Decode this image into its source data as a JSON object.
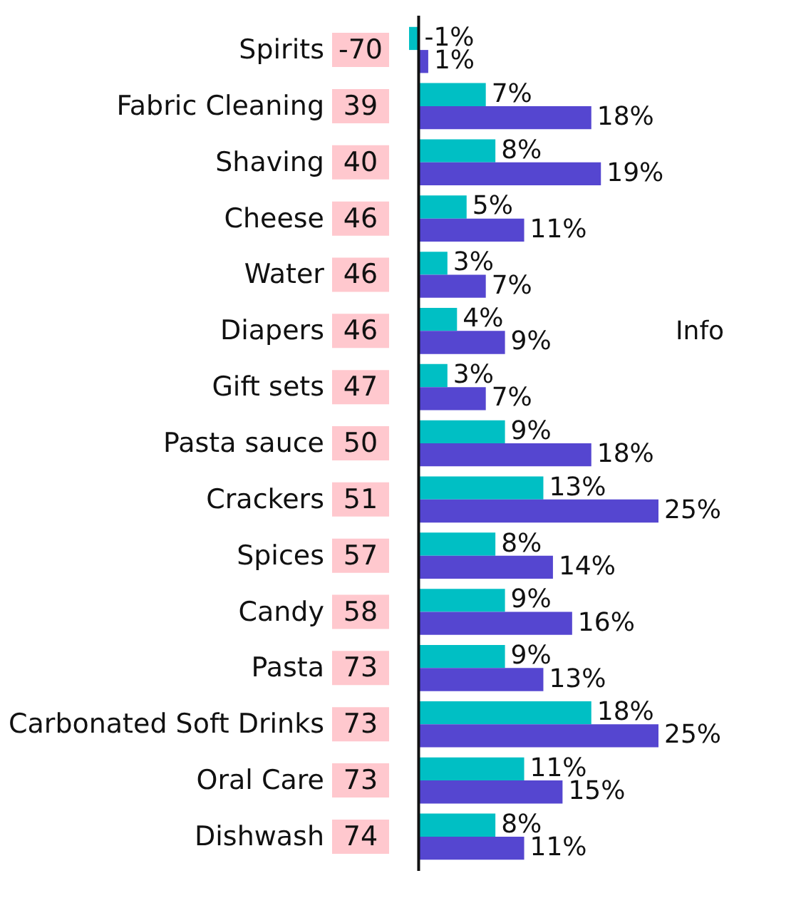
{
  "chart_data": {
    "type": "bar",
    "orientation": "horizontal",
    "categories": [
      "Spirits",
      "Fabric Cleaning",
      "Shaving",
      "Cheese",
      "Water",
      "Diapers",
      "Gift sets",
      "Pasta sauce",
      "Crackers",
      "Spices",
      "Candy",
      "Pasta",
      "Carbonated Soft Drinks",
      "Oral Care",
      "Dishwash"
    ],
    "series": [
      {
        "color": "#00bfc4",
        "values": [
          -1,
          7,
          8,
          5,
          3,
          4,
          3,
          9,
          13,
          8,
          9,
          9,
          18,
          11,
          8
        ],
        "value_labels": [
          "-1%",
          "7%",
          "8%",
          "5%",
          "3%",
          "4%",
          "3%",
          "9%",
          "13%",
          "8%",
          "9%",
          "9%",
          "18%",
          "11%",
          "8%"
        ]
      },
      {
        "color": "#5546d0",
        "values": [
          1,
          18,
          19,
          11,
          7,
          9,
          7,
          18,
          25,
          14,
          16,
          13,
          25,
          15,
          11
        ],
        "value_labels": [
          "1%",
          "18%",
          "19%",
          "11%",
          "7%",
          "9%",
          "7%",
          "18%",
          "25%",
          "14%",
          "16%",
          "13%",
          "25%",
          "15%",
          "11%"
        ]
      }
    ],
    "annotations": [
      "-70",
      "39",
      "40",
      "46",
      "46",
      "46",
      "47",
      "50",
      "51",
      "57",
      "58",
      "73",
      "73",
      "73",
      "74",
      "Info"
    ],
    "grid": false,
    "legend": false
  }
}
